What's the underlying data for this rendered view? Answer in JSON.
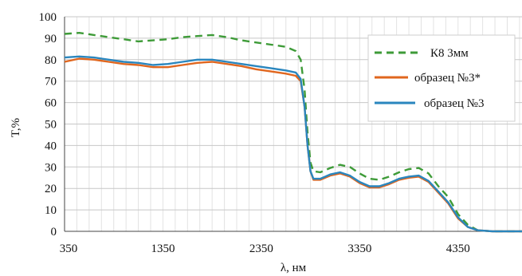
{
  "chart_data": {
    "type": "line",
    "title": "",
    "xlabel": "λ, нм",
    "ylabel": "T,%",
    "xlim": [
      350,
      5000
    ],
    "ylim": [
      0,
      100
    ],
    "x_ticks": [
      "350",
      "1350",
      "2350",
      "3350",
      "4350"
    ],
    "y_ticks": [
      "0",
      "10",
      "20",
      "30",
      "40",
      "50",
      "60",
      "70",
      "80",
      "90",
      "100"
    ],
    "grid": true,
    "legend_position": "right",
    "series": [
      {
        "name": "К8 3мм",
        "color": "#3e9b38",
        "style": "dashed",
        "points": [
          [
            350,
            92
          ],
          [
            500,
            92.5
          ],
          [
            650,
            91.5
          ],
          [
            800,
            90.5
          ],
          [
            950,
            89.5
          ],
          [
            1100,
            88.5
          ],
          [
            1250,
            89
          ],
          [
            1400,
            89.5
          ],
          [
            1550,
            90.5
          ],
          [
            1700,
            91
          ],
          [
            1850,
            91.5
          ],
          [
            2000,
            90.5
          ],
          [
            2150,
            89
          ],
          [
            2300,
            88
          ],
          [
            2450,
            87
          ],
          [
            2600,
            86
          ],
          [
            2700,
            84
          ],
          [
            2750,
            80
          ],
          [
            2790,
            66
          ],
          [
            2820,
            46
          ],
          [
            2850,
            32
          ],
          [
            2880,
            28
          ],
          [
            2950,
            27.5
          ],
          [
            3050,
            29.5
          ],
          [
            3150,
            31
          ],
          [
            3250,
            30
          ],
          [
            3350,
            27
          ],
          [
            3450,
            24.5
          ],
          [
            3550,
            24
          ],
          [
            3650,
            25.5
          ],
          [
            3750,
            27.5
          ],
          [
            3850,
            29
          ],
          [
            3950,
            29.5
          ],
          [
            4050,
            27
          ],
          [
            4150,
            21
          ],
          [
            4250,
            16
          ],
          [
            4350,
            8
          ],
          [
            4450,
            3
          ],
          [
            4550,
            0.5
          ],
          [
            4700,
            0
          ],
          [
            5000,
            0
          ]
        ]
      },
      {
        "name": "образец №3*",
        "color": "#e0661e",
        "style": "solid",
        "points": [
          [
            350,
            79
          ],
          [
            500,
            80.5
          ],
          [
            650,
            80
          ],
          [
            800,
            79
          ],
          [
            950,
            78
          ],
          [
            1100,
            77.5
          ],
          [
            1250,
            76.5
          ],
          [
            1400,
            76.5
          ],
          [
            1550,
            77.5
          ],
          [
            1700,
            78.5
          ],
          [
            1850,
            79
          ],
          [
            2000,
            78
          ],
          [
            2150,
            77
          ],
          [
            2300,
            75.5
          ],
          [
            2450,
            74.5
          ],
          [
            2600,
            73.5
          ],
          [
            2700,
            72.5
          ],
          [
            2750,
            70
          ],
          [
            2790,
            58
          ],
          [
            2820,
            40
          ],
          [
            2850,
            28
          ],
          [
            2880,
            24
          ],
          [
            2950,
            24
          ],
          [
            3050,
            26
          ],
          [
            3150,
            27
          ],
          [
            3250,
            25.5
          ],
          [
            3350,
            22.5
          ],
          [
            3450,
            20.5
          ],
          [
            3550,
            20.5
          ],
          [
            3650,
            22
          ],
          [
            3750,
            24
          ],
          [
            3850,
            25
          ],
          [
            3950,
            25.5
          ],
          [
            4050,
            23
          ],
          [
            4150,
            18
          ],
          [
            4250,
            13
          ],
          [
            4350,
            6
          ],
          [
            4450,
            2
          ],
          [
            4550,
            0.5
          ],
          [
            4700,
            0
          ],
          [
            5000,
            0
          ]
        ]
      },
      {
        "name": "образец №3",
        "color": "#2a86be",
        "style": "solid",
        "points": [
          [
            350,
            81
          ],
          [
            500,
            81.5
          ],
          [
            650,
            81
          ],
          [
            800,
            80
          ],
          [
            950,
            79
          ],
          [
            1100,
            78.5
          ],
          [
            1250,
            77.5
          ],
          [
            1400,
            78
          ],
          [
            1550,
            79
          ],
          [
            1700,
            80
          ],
          [
            1850,
            80
          ],
          [
            2000,
            79
          ],
          [
            2150,
            78
          ],
          [
            2300,
            77
          ],
          [
            2450,
            76
          ],
          [
            2600,
            75
          ],
          [
            2700,
            74
          ],
          [
            2750,
            71
          ],
          [
            2790,
            58
          ],
          [
            2820,
            40
          ],
          [
            2850,
            28
          ],
          [
            2880,
            24.5
          ],
          [
            2950,
            24.5
          ],
          [
            3050,
            26.5
          ],
          [
            3150,
            27.5
          ],
          [
            3250,
            26
          ],
          [
            3350,
            23
          ],
          [
            3450,
            21
          ],
          [
            3550,
            21
          ],
          [
            3650,
            22.5
          ],
          [
            3750,
            24.5
          ],
          [
            3850,
            25.5
          ],
          [
            3950,
            26
          ],
          [
            4050,
            23.5
          ],
          [
            4150,
            18.5
          ],
          [
            4250,
            13.5
          ],
          [
            4350,
            6.5
          ],
          [
            4450,
            2
          ],
          [
            4550,
            0.5
          ],
          [
            4700,
            0
          ],
          [
            5000,
            0
          ]
        ]
      }
    ]
  }
}
